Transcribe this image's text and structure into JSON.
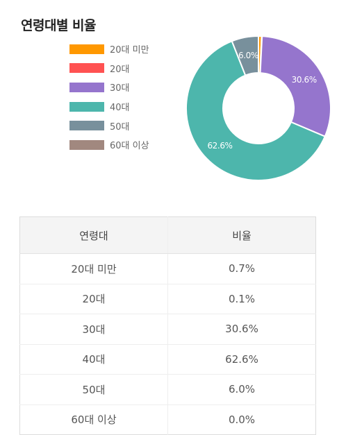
{
  "title": "연령대별 비율",
  "chart_data": {
    "type": "pie",
    "title": "연령대별 비율",
    "categories": [
      "20대 미만",
      "20대",
      "30대",
      "40대",
      "50대",
      "60대 이상"
    ],
    "values": [
      0.7,
      0.1,
      30.6,
      62.6,
      6.0,
      0.0
    ],
    "colors": [
      "#ff9800",
      "#ff5252",
      "#9575cd",
      "#4db6ac",
      "#78909c",
      "#a1887f"
    ],
    "data_labels": [
      "",
      "",
      "30.6%",
      "62.6%",
      "6.0%",
      ""
    ],
    "donut": true,
    "legend_position": "top-left"
  },
  "table": {
    "headers": [
      "연령대",
      "비율"
    ],
    "rows": [
      [
        "20대 미만",
        "0.7%"
      ],
      [
        "20대",
        "0.1%"
      ],
      [
        "30대",
        "30.6%"
      ],
      [
        "40대",
        "62.6%"
      ],
      [
        "50대",
        "6.0%"
      ],
      [
        "60대 이상",
        "0.0%"
      ]
    ]
  }
}
